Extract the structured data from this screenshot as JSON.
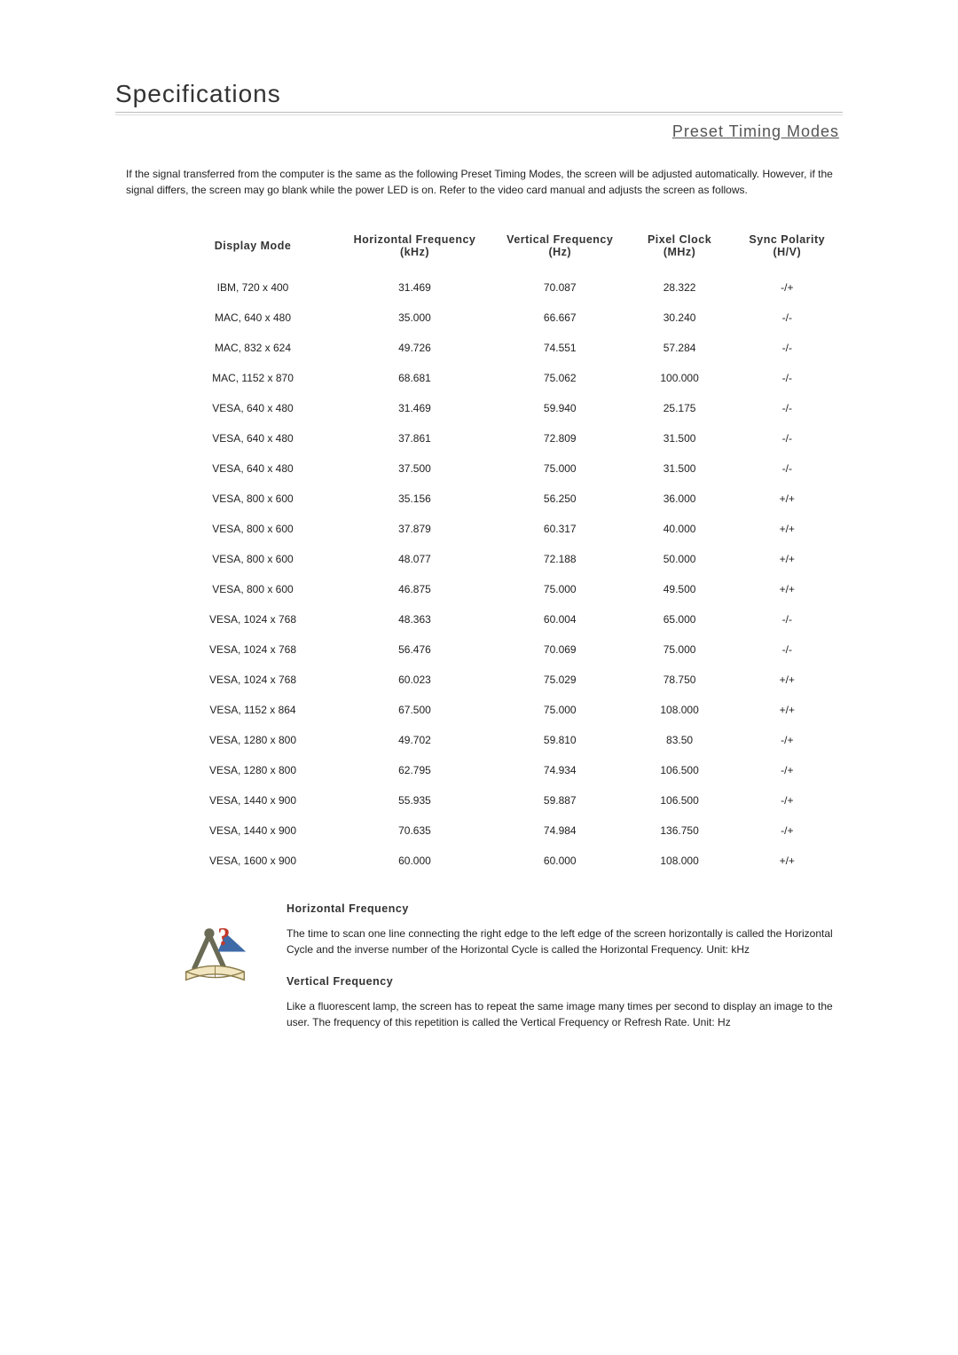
{
  "title": "Specifications",
  "section": "Preset Timing Modes",
  "intro": "If the signal transferred from the computer is the same as the following Preset Timing Modes, the screen will be adjusted automatically. However, if the signal differs, the screen may go blank while the power LED is on. Refer to the video card manual and adjusts the screen as follows.",
  "table": {
    "columns": [
      "Display Mode",
      "Horizontal Frequency (kHz)",
      "Vertical Frequency (Hz)",
      "Pixel Clock (MHz)",
      "Sync Polarity (H/V)"
    ],
    "rows": [
      [
        "IBM, 720 x 400",
        "31.469",
        "70.087",
        "28.322",
        "-/+"
      ],
      [
        "MAC, 640 x 480",
        "35.000",
        "66.667",
        "30.240",
        "-/-"
      ],
      [
        "MAC, 832 x 624",
        "49.726",
        "74.551",
        "57.284",
        "-/-"
      ],
      [
        "MAC, 1152 x 870",
        "68.681",
        "75.062",
        "100.000",
        "-/-"
      ],
      [
        "VESA, 640 x 480",
        "31.469",
        "59.940",
        "25.175",
        "-/-"
      ],
      [
        "VESA, 640 x 480",
        "37.861",
        "72.809",
        "31.500",
        "-/-"
      ],
      [
        "VESA, 640 x 480",
        "37.500",
        "75.000",
        "31.500",
        "-/-"
      ],
      [
        "VESA, 800 x 600",
        "35.156",
        "56.250",
        "36.000",
        "+/+"
      ],
      [
        "VESA, 800 x 600",
        "37.879",
        "60.317",
        "40.000",
        "+/+"
      ],
      [
        "VESA, 800 x 600",
        "48.077",
        "72.188",
        "50.000",
        "+/+"
      ],
      [
        "VESA, 800 x 600",
        "46.875",
        "75.000",
        "49.500",
        "+/+"
      ],
      [
        "VESA, 1024 x 768",
        "48.363",
        "60.004",
        "65.000",
        "-/-"
      ],
      [
        "VESA, 1024 x 768",
        "56.476",
        "70.069",
        "75.000",
        "-/-"
      ],
      [
        "VESA, 1024 x 768",
        "60.023",
        "75.029",
        "78.750",
        "+/+"
      ],
      [
        "VESA, 1152 x 864",
        "67.500",
        "75.000",
        "108.000",
        "+/+"
      ],
      [
        "VESA, 1280 x 800",
        "49.702",
        "59.810",
        "83.50",
        "-/+"
      ],
      [
        "VESA, 1280 x 800",
        "62.795",
        "74.934",
        "106.500",
        "-/+"
      ],
      [
        "VESA, 1440 x 900",
        "55.935",
        "59.887",
        "106.500",
        "-/+"
      ],
      [
        "VESA, 1440 x 900",
        "70.635",
        "74.984",
        "136.750",
        "-/+"
      ],
      [
        "VESA, 1600 x 900",
        "60.000",
        "60.000",
        "108.000",
        "+/+"
      ]
    ]
  },
  "definitions": {
    "horizontal": {
      "heading": "Horizontal Frequency",
      "body": "The time to scan one line connecting the right edge to the left edge of the screen horizontally is called the Horizontal Cycle and the inverse number of the Horizontal Cycle is called the Horizontal Frequency. Unit: kHz"
    },
    "vertical": {
      "heading": "Vertical Frequency",
      "body": "Like a fluorescent lamp, the screen has to repeat the same image many times per second to display an image to the user. The frequency of this repetition is called the Vertical Frequency or Refresh Rate. Unit: Hz"
    }
  },
  "colors": {
    "heading": "#333333",
    "text": "#222222",
    "rule": "#bbbbbb"
  }
}
